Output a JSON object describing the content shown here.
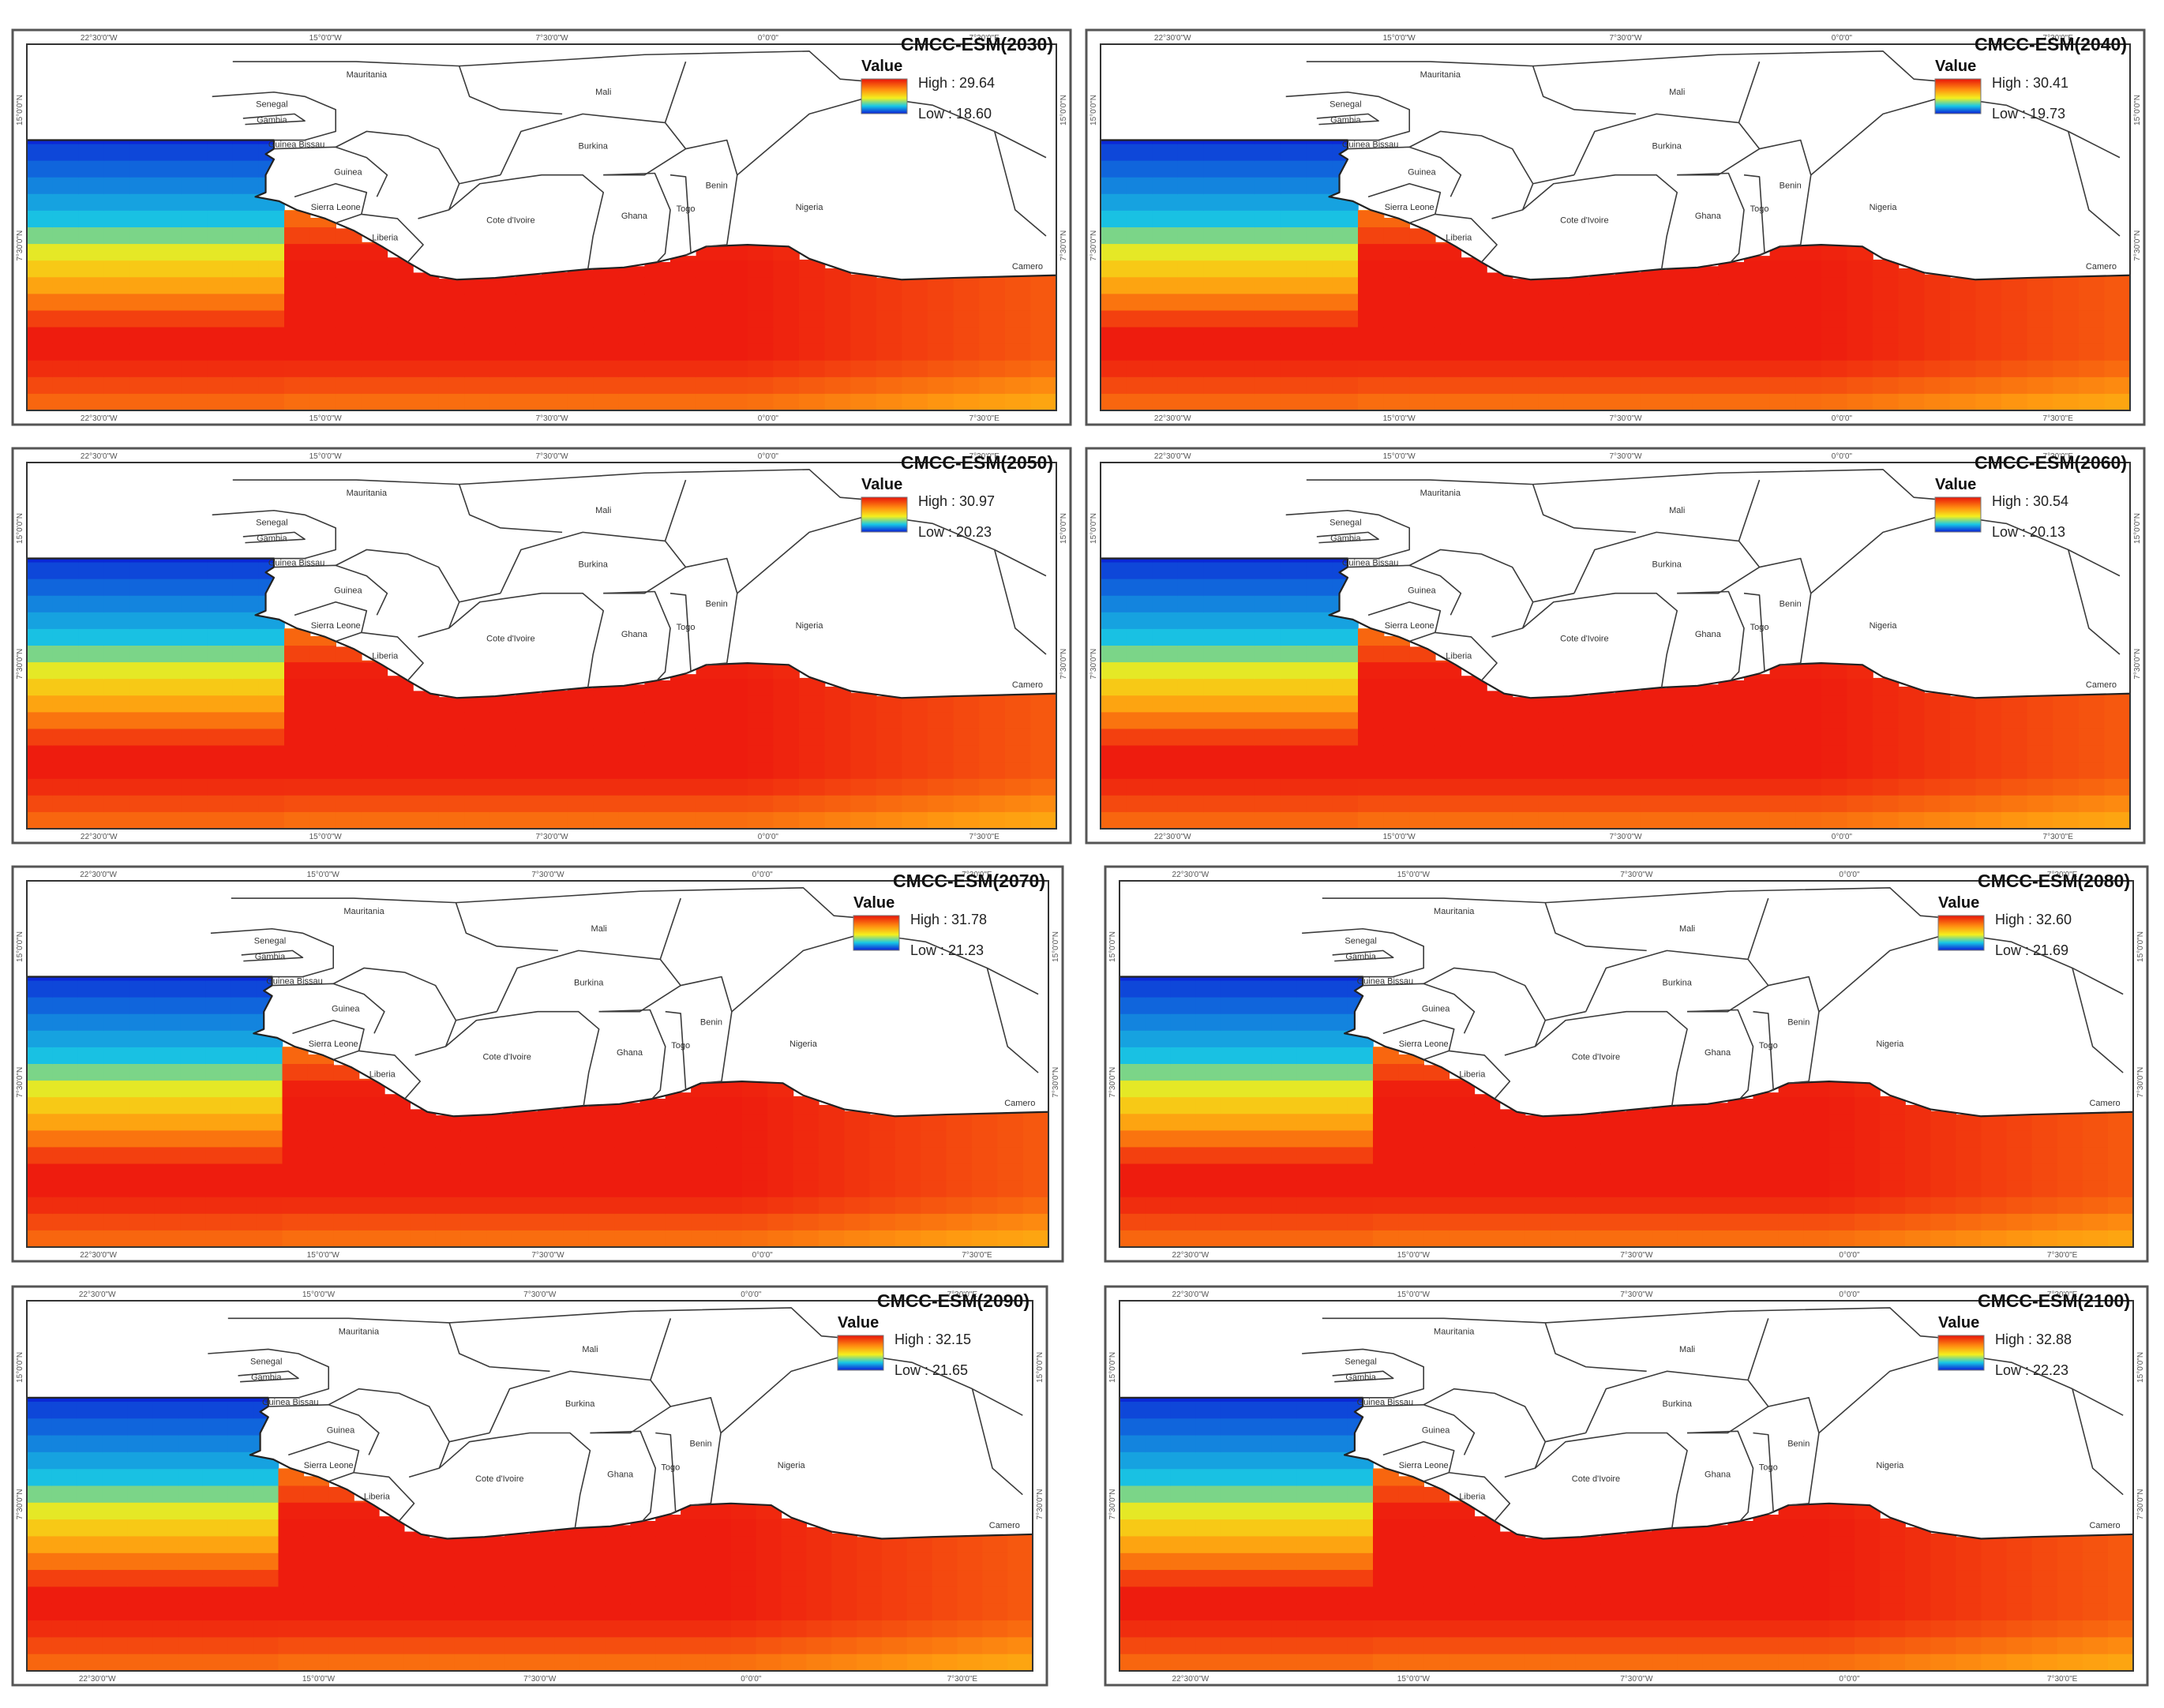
{
  "figure": {
    "description_colors": {
      "ocean_warm_core": "#ee1c0e",
      "ocean_warm_edge": "#ff9a10",
      "ocean_mid": "#f2ea1a",
      "ocean_cool": "#19c3e3",
      "ocean_cold": "#0a1ed6",
      "land": "#ffffff",
      "border": "#3b3b3b"
    },
    "panels": [
      {
        "id": "2030",
        "title": "CMCC-ESM(2030)",
        "legend_heading": "Value",
        "high_label": "High : 29.64",
        "low_label": "Low : 18.60",
        "high": 29.64,
        "low": 18.6
      },
      {
        "id": "2040",
        "title": "CMCC-ESM(2040)",
        "legend_heading": "Value",
        "high_label": "High : 30.41",
        "low_label": "Low : 19.73",
        "high": 30.41,
        "low": 19.73
      },
      {
        "id": "2050",
        "title": "CMCC-ESM(2050)",
        "legend_heading": "Value",
        "high_label": "High : 30.97",
        "low_label": "Low : 20.23",
        "high": 30.97,
        "low": 20.23
      },
      {
        "id": "2060",
        "title": "CMCC-ESM(2060)",
        "legend_heading": "Value",
        "high_label": "High : 30.54",
        "low_label": "Low : 20.13",
        "high": 30.54,
        "low": 20.13
      },
      {
        "id": "2070",
        "title": "CMCC-ESM(2070)",
        "legend_heading": "Value",
        "high_label": "High : 31.78",
        "low_label": "Low : 21.23",
        "high": 31.78,
        "low": 21.23
      },
      {
        "id": "2080",
        "title": "CMCC-ESM(2080)",
        "legend_heading": "Value",
        "high_label": "High : 32.60",
        "low_label": "Low : 21.69",
        "high": 32.6,
        "low": 21.69
      },
      {
        "id": "2090",
        "title": "CMCC-ESM(2090)",
        "legend_heading": "Value",
        "high_label": "High : 32.15",
        "low_label": "Low : 21.65",
        "high": 32.15,
        "low": 21.65
      },
      {
        "id": "2100",
        "title": "CMCC-ESM(2100)",
        "legend_heading": "Value",
        "high_label": "High : 32.88",
        "low_label": "Low : 22.23",
        "high": 32.88,
        "low": 22.23
      }
    ],
    "countries": {
      "mauritania": "Mauritania",
      "mali": "Mali",
      "senegal": "Senegal",
      "gambia": "Gambia",
      "guinea_bissau": "Guinea Bissau",
      "guinea": "Guinea",
      "sierra_leone": "Sierra Leone",
      "liberia": "Liberia",
      "cote_divoire": "Cote d'Ivoire",
      "burkina": "Burkina",
      "ghana": "Ghana",
      "togo": "Togo",
      "benin": "Benin",
      "nigeria": "Nigeria",
      "cameroon": "Camero"
    },
    "ticks": {
      "x": [
        "22°30'0\"W",
        "15°0'0\"W",
        "7°30'0\"W",
        "0°0'0\"",
        "7°30'0\"E"
      ],
      "y": [
        "15°0'0\"N",
        "7°30'0\"N"
      ]
    }
  }
}
